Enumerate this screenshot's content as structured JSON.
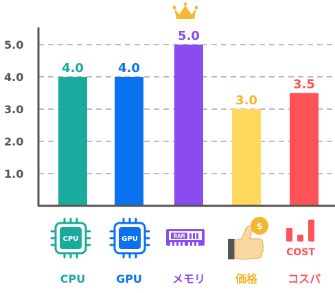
{
  "chart_data": {
    "type": "bar",
    "categories": [
      "CPU",
      "GPU",
      "メモリ",
      "価格",
      "コスパ"
    ],
    "values": [
      4.0,
      4.0,
      5.0,
      3.0,
      3.5
    ],
    "value_labels": [
      "4.0",
      "4.0",
      "5.0",
      "3.0",
      "3.5"
    ],
    "colors": [
      "#1aaa9e",
      "#0a72f0",
      "#8a4cf0",
      "#ffd95e",
      "#ff5357"
    ],
    "label_colors": [
      "#1aaa9e",
      "#0a72f0",
      "#8a4cf0",
      "#f2b72a",
      "#ff5357"
    ],
    "yticks": [
      "1.0",
      "2.0",
      "3.0",
      "4.0",
      "5.0"
    ],
    "ylim": [
      0,
      5.0
    ],
    "grid": true,
    "grid_style": "dashed",
    "highlight": "メモリ",
    "highlight_icon": "crown-icon",
    "title": "",
    "xlabel": "",
    "ylabel": ""
  },
  "icons": {
    "cpu": {
      "name": "cpu-chip-icon",
      "text": "CPU"
    },
    "gpu": {
      "name": "gpu-chip-icon",
      "text": "GPU"
    },
    "ram": {
      "name": "ram-module-icon",
      "text": "RAM"
    },
    "price": {
      "name": "thumbs-up-coin-icon",
      "text": "$"
    },
    "cost": {
      "name": "cost-bars-icon",
      "text": "COST"
    }
  },
  "colors": {
    "axis": "#555555",
    "grid": "#bbbbbb",
    "crown": "#f5b93a"
  }
}
